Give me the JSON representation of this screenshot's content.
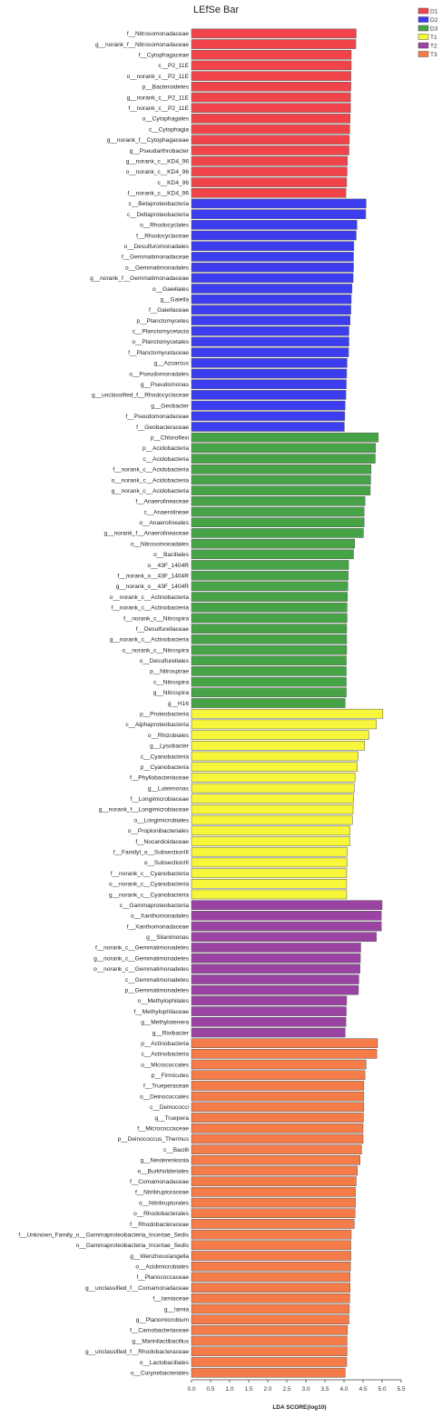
{
  "chart_data": {
    "type": "bar",
    "orientation": "horizontal",
    "title": "LEfSe Bar",
    "xlabel": "LDA SCORE(log10)",
    "xlim": [
      0,
      5.5
    ],
    "xticks": [
      "0.0",
      "0.5",
      "1.0",
      "1.5",
      "2.0",
      "2.5",
      "3.0",
      "3.5",
      "4.0",
      "4.5",
      "5.0",
      "5.5"
    ],
    "grid": false,
    "legend_position": "top-right",
    "groups": [
      {
        "name": "D1",
        "color": "#f0444a"
      },
      {
        "name": "D2",
        "color": "#3d3df0"
      },
      {
        "name": "D3",
        "color": "#46a446"
      },
      {
        "name": "T1",
        "color": "#f6f63a"
      },
      {
        "name": "T2",
        "color": "#9a43a2"
      },
      {
        "name": "T3",
        "color": "#f57c48"
      }
    ],
    "bars": [
      {
        "label": "f__Nitrosomonadaceae",
        "value": 4.32,
        "group": 0
      },
      {
        "label": "g__norank_f__Nitrosomonadaceae",
        "value": 4.31,
        "group": 0
      },
      {
        "label": "f__Cytophagaceae",
        "value": 4.19,
        "group": 0
      },
      {
        "label": "c__P2_11E",
        "value": 4.19,
        "group": 0
      },
      {
        "label": "o__norank_c__P2_11E",
        "value": 4.18,
        "group": 0
      },
      {
        "label": "p__Bacteroidetes",
        "value": 4.18,
        "group": 0
      },
      {
        "label": "g__norank_c__P2_11E",
        "value": 4.17,
        "group": 0
      },
      {
        "label": "f__norank_c__P2_11E",
        "value": 4.17,
        "group": 0
      },
      {
        "label": "o__Cytophagales",
        "value": 4.16,
        "group": 0
      },
      {
        "label": "c__Cytophagia",
        "value": 4.15,
        "group": 0
      },
      {
        "label": "g__norank_f__Cytophagaceae",
        "value": 4.14,
        "group": 0
      },
      {
        "label": "g__Pseudarthrobacter",
        "value": 4.13,
        "group": 0
      },
      {
        "label": "g__norank_c__KD4_96",
        "value": 4.09,
        "group": 0
      },
      {
        "label": "o__norank_c__KD4_96",
        "value": 4.08,
        "group": 0
      },
      {
        "label": "c__KD4_96",
        "value": 4.07,
        "group": 0
      },
      {
        "label": "f__norank_c__KD4_96",
        "value": 4.05,
        "group": 0
      },
      {
        "label": "c__Betaproteobacteria",
        "value": 4.58,
        "group": 1
      },
      {
        "label": "c__Deltaproteobacteria",
        "value": 4.57,
        "group": 1
      },
      {
        "label": "o__Rhodocyclales",
        "value": 4.34,
        "group": 1
      },
      {
        "label": "f__Rhodocyclaceae",
        "value": 4.32,
        "group": 1
      },
      {
        "label": "o__Desulfuromonadales",
        "value": 4.26,
        "group": 1
      },
      {
        "label": "f__Gemmatimonadaceae",
        "value": 4.25,
        "group": 1
      },
      {
        "label": "o__Gemmatimonadales",
        "value": 4.25,
        "group": 1
      },
      {
        "label": "g__norank_f__Gemmatimonadaceae",
        "value": 4.24,
        "group": 1
      },
      {
        "label": "o__Gaiellales",
        "value": 4.21,
        "group": 1
      },
      {
        "label": "g__Gaiella",
        "value": 4.19,
        "group": 1
      },
      {
        "label": "f__Gaiellaceae",
        "value": 4.18,
        "group": 1
      },
      {
        "label": "p__Planctomycetes",
        "value": 4.16,
        "group": 1
      },
      {
        "label": "c__Planctomycetacia",
        "value": 4.13,
        "group": 1
      },
      {
        "label": "o__Planctomycetales",
        "value": 4.13,
        "group": 1
      },
      {
        "label": "f__Planctomycetaceae",
        "value": 4.12,
        "group": 1
      },
      {
        "label": "g__Azoarcus",
        "value": 4.08,
        "group": 1
      },
      {
        "label": "o__Pseudomonadales",
        "value": 4.07,
        "group": 1
      },
      {
        "label": "g__Pseudomonas",
        "value": 4.06,
        "group": 1
      },
      {
        "label": "g__unclassified_f__Rhodocyclaceae",
        "value": 4.05,
        "group": 1
      },
      {
        "label": "g__Geobacter",
        "value": 4.03,
        "group": 1
      },
      {
        "label": "f__Pseudomonadaceae",
        "value": 4.02,
        "group": 1
      },
      {
        "label": "f__Geobacteraceae",
        "value": 4.01,
        "group": 1
      },
      {
        "label": "p__Chloroflexi",
        "value": 4.9,
        "group": 2
      },
      {
        "label": "p__Acidobacteria",
        "value": 4.83,
        "group": 2
      },
      {
        "label": "c__Acidobacteria",
        "value": 4.82,
        "group": 2
      },
      {
        "label": "f__norank_c__Acidobacteria",
        "value": 4.71,
        "group": 2
      },
      {
        "label": "o__norank_c__Acidobacteria",
        "value": 4.7,
        "group": 2
      },
      {
        "label": "g__norank_c__Acidobacteria",
        "value": 4.69,
        "group": 2
      },
      {
        "label": "f__Anaerolineaceae",
        "value": 4.55,
        "group": 2
      },
      {
        "label": "c__Anaerolineae",
        "value": 4.53,
        "group": 2
      },
      {
        "label": "o__Anaerolineales",
        "value": 4.53,
        "group": 2
      },
      {
        "label": "g__norank_f__Anaerolineaceae",
        "value": 4.51,
        "group": 2
      },
      {
        "label": "o__Nitrosomonadales",
        "value": 4.28,
        "group": 2
      },
      {
        "label": "o__Bacillales",
        "value": 4.25,
        "group": 2
      },
      {
        "label": "o__43F_1404R",
        "value": 4.12,
        "group": 2
      },
      {
        "label": "f__norank_o__43F_1404R",
        "value": 4.11,
        "group": 2
      },
      {
        "label": "g__norank_o__43F_1404R",
        "value": 4.1,
        "group": 2
      },
      {
        "label": "o__norank_c__Actinobacteria",
        "value": 4.09,
        "group": 2
      },
      {
        "label": "f__norank_c__Actinobacteria",
        "value": 4.08,
        "group": 2
      },
      {
        "label": "f__norank_c__Nitrospira",
        "value": 4.08,
        "group": 2
      },
      {
        "label": "f__Desulfurellaceae",
        "value": 4.07,
        "group": 2
      },
      {
        "label": "g__norank_c__Actinobacteria",
        "value": 4.07,
        "group": 2
      },
      {
        "label": "o__norank_c__Nitrospira",
        "value": 4.07,
        "group": 2
      },
      {
        "label": "o__Desulfurellales",
        "value": 4.06,
        "group": 2
      },
      {
        "label": "p__Nitrospirae",
        "value": 4.06,
        "group": 2
      },
      {
        "label": "c__Nitrospira",
        "value": 4.06,
        "group": 2
      },
      {
        "label": "g__Nitrospira",
        "value": 4.06,
        "group": 2
      },
      {
        "label": "g__H16",
        "value": 4.03,
        "group": 2
      },
      {
        "label": "p__Proteobacteria",
        "value": 5.02,
        "group": 3
      },
      {
        "label": "c__Alphaproteobacteria",
        "value": 4.85,
        "group": 3
      },
      {
        "label": "o__Rhizobiales",
        "value": 4.65,
        "group": 3
      },
      {
        "label": "g__Lysobacter",
        "value": 4.54,
        "group": 3
      },
      {
        "label": "c__Cyanobacteria",
        "value": 4.37,
        "group": 3
      },
      {
        "label": "p__Cyanobacteria",
        "value": 4.35,
        "group": 3
      },
      {
        "label": "f__Phyllobacteriaceae",
        "value": 4.29,
        "group": 3
      },
      {
        "label": "g__Luteimonas",
        "value": 4.27,
        "group": 3
      },
      {
        "label": "f__Longimicrobiaceae",
        "value": 4.25,
        "group": 3
      },
      {
        "label": "g__norank_f__Longimicrobiaceae",
        "value": 4.24,
        "group": 3
      },
      {
        "label": "o__Longimicrobiales",
        "value": 4.22,
        "group": 3
      },
      {
        "label": "o__Propionibacteriales",
        "value": 4.16,
        "group": 3
      },
      {
        "label": "f__Nocardioidaceae",
        "value": 4.15,
        "group": 3
      },
      {
        "label": "f__FamilyI_o__SubsectionIII",
        "value": 4.08,
        "group": 3
      },
      {
        "label": "o__SubsectionIII",
        "value": 4.08,
        "group": 3
      },
      {
        "label": "f__norank_c__Cyanobacteria",
        "value": 4.07,
        "group": 3
      },
      {
        "label": "o__norank_c__Cyanobacteria",
        "value": 4.07,
        "group": 3
      },
      {
        "label": "g__norank_c__Cyanobacteria",
        "value": 4.07,
        "group": 3
      },
      {
        "label": "c__Gammaproteobacteria",
        "value": 5.0,
        "group": 4
      },
      {
        "label": "o__Xanthomonadales",
        "value": 4.98,
        "group": 4
      },
      {
        "label": "f__Xanthomonadaceae",
        "value": 4.98,
        "group": 4
      },
      {
        "label": "g__Silanimonas",
        "value": 4.85,
        "group": 4
      },
      {
        "label": "f__norank_c__Gemmatimonadetes",
        "value": 4.44,
        "group": 4
      },
      {
        "label": "g__norank_c__Gemmatimonadetes",
        "value": 4.43,
        "group": 4
      },
      {
        "label": "o__norank_c__Gemmatimonadetes",
        "value": 4.42,
        "group": 4
      },
      {
        "label": "c__Gemmatimonadetes",
        "value": 4.39,
        "group": 4
      },
      {
        "label": "p__Gemmatimonadetes",
        "value": 4.38,
        "group": 4
      },
      {
        "label": "o__Methylophilales",
        "value": 4.07,
        "group": 4
      },
      {
        "label": "f__Methylophilaceae",
        "value": 4.06,
        "group": 4
      },
      {
        "label": "g__Methylotenera",
        "value": 4.05,
        "group": 4
      },
      {
        "label": "g__Rivibacter",
        "value": 4.03,
        "group": 4
      },
      {
        "label": "p__Actinobacteria",
        "value": 4.88,
        "group": 5
      },
      {
        "label": "c__Actinobacteria",
        "value": 4.86,
        "group": 5
      },
      {
        "label": "o__Micrococcales",
        "value": 4.58,
        "group": 5
      },
      {
        "label": "p__Firmicutes",
        "value": 4.55,
        "group": 5
      },
      {
        "label": "f__Trueperaceae",
        "value": 4.52,
        "group": 5
      },
      {
        "label": "o__Deinococcales",
        "value": 4.52,
        "group": 5
      },
      {
        "label": "c__Deinococci",
        "value": 4.52,
        "group": 5
      },
      {
        "label": "g__Truepera",
        "value": 4.51,
        "group": 5
      },
      {
        "label": "f__Micrococcaceae",
        "value": 4.5,
        "group": 5
      },
      {
        "label": "p__Deinococcus_Thermus",
        "value": 4.5,
        "group": 5
      },
      {
        "label": "c__Bacilli",
        "value": 4.46,
        "group": 5
      },
      {
        "label": "g__Nesterenkonia",
        "value": 4.42,
        "group": 5
      },
      {
        "label": "o__Burkholderiales",
        "value": 4.35,
        "group": 5
      },
      {
        "label": "f__Comamonadaceae",
        "value": 4.32,
        "group": 5
      },
      {
        "label": "f__Nitriliruptoraceae",
        "value": 4.3,
        "group": 5
      },
      {
        "label": "o__Nitriliruptorales",
        "value": 4.3,
        "group": 5
      },
      {
        "label": "o__Rhodobacterales",
        "value": 4.29,
        "group": 5
      },
      {
        "label": "f__Rhodobacteraceae",
        "value": 4.27,
        "group": 5
      },
      {
        "label": "f__Unknown_Family_o__Gammaproteobacteria_Incertae_Sedis",
        "value": 4.19,
        "group": 5
      },
      {
        "label": "o__Gammaproteobacteria_Incertae_Sedis",
        "value": 4.18,
        "group": 5
      },
      {
        "label": "g__Wenzhouxiangella",
        "value": 4.18,
        "group": 5
      },
      {
        "label": "o__Acidimicrobiales",
        "value": 4.17,
        "group": 5
      },
      {
        "label": "f__Planococcaceae",
        "value": 4.16,
        "group": 5
      },
      {
        "label": "g__unclassified_f__Comamonadaceae",
        "value": 4.16,
        "group": 5
      },
      {
        "label": "f__Iamiaceae",
        "value": 4.15,
        "group": 5
      },
      {
        "label": "g__Iamia",
        "value": 4.14,
        "group": 5
      },
      {
        "label": "g__Planomicrobium",
        "value": 4.13,
        "group": 5
      },
      {
        "label": "f__Carnobacteriaceae",
        "value": 4.09,
        "group": 5
      },
      {
        "label": "g__Marinilactibacillus",
        "value": 4.08,
        "group": 5
      },
      {
        "label": "g__unclassified_f__Rhodobacteraceae",
        "value": 4.08,
        "group": 5
      },
      {
        "label": "o__Lactobacillales",
        "value": 4.07,
        "group": 5
      },
      {
        "label": "o__Corynebacteriales",
        "value": 4.03,
        "group": 5
      }
    ]
  }
}
